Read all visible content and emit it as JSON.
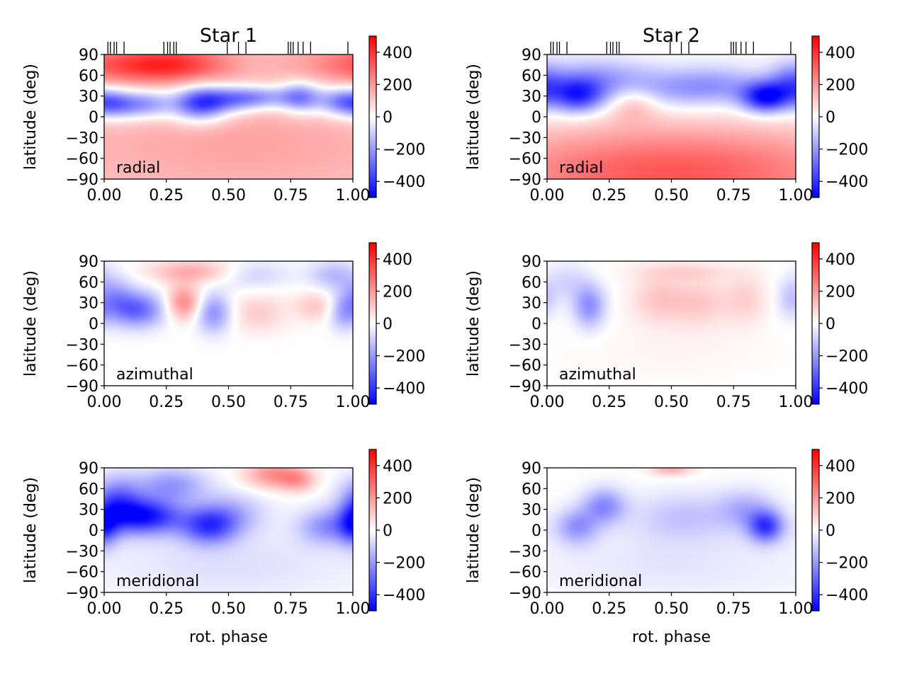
{
  "chart_data": {
    "type": "heatmap",
    "suptitle": "",
    "columns": [
      {
        "title": "Star 1",
        "observation_phases": [
          0.015,
          0.025,
          0.04,
          0.05,
          0.08,
          0.24,
          0.255,
          0.265,
          0.28,
          0.29,
          0.495,
          0.54,
          0.57,
          0.74,
          0.75,
          0.76,
          0.78,
          0.8,
          0.83,
          0.98
        ],
        "panels": [
          {
            "component": "radial",
            "baseline": 120,
            "features": [
              {
                "phase": 0.1,
                "lat": 75,
                "value": 200,
                "sp": 0.2,
                "sl": 18
              },
              {
                "phase": 0.3,
                "lat": 75,
                "value": 180,
                "sp": 0.15,
                "sl": 18
              },
              {
                "phase": 0.05,
                "lat": 18,
                "value": -320,
                "sp": 0.07,
                "sl": 15
              },
              {
                "phase": 0.18,
                "lat": 18,
                "value": -260,
                "sp": 0.07,
                "sl": 15
              },
              {
                "phase": 0.38,
                "lat": 18,
                "value": -420,
                "sp": 0.08,
                "sl": 18
              },
              {
                "phase": 0.5,
                "lat": 25,
                "value": -250,
                "sp": 0.1,
                "sl": 14
              },
              {
                "phase": 0.63,
                "lat": 28,
                "value": -240,
                "sp": 0.1,
                "sl": 12
              },
              {
                "phase": 0.79,
                "lat": 28,
                "value": -320,
                "sp": 0.06,
                "sl": 16
              },
              {
                "phase": 0.95,
                "lat": 22,
                "value": -300,
                "sp": 0.07,
                "sl": 15
              },
              {
                "phase": 0.55,
                "lat": -40,
                "value": 60,
                "sp": 0.4,
                "sl": 40
              }
            ]
          },
          {
            "component": "azimuthal",
            "baseline": 0,
            "features": [
              {
                "phase": 0.13,
                "lat": 20,
                "value": -300,
                "sp": 0.08,
                "sl": 18
              },
              {
                "phase": 0.03,
                "lat": 40,
                "value": -160,
                "sp": 0.06,
                "sl": 20
              },
              {
                "phase": 0.32,
                "lat": 30,
                "value": 240,
                "sp": 0.05,
                "sl": 18
              },
              {
                "phase": 0.35,
                "lat": 75,
                "value": 160,
                "sp": 0.12,
                "sl": 12
              },
              {
                "phase": 0.44,
                "lat": 15,
                "value": -220,
                "sp": 0.05,
                "sl": 20
              },
              {
                "phase": 0.62,
                "lat": 15,
                "value": 100,
                "sp": 0.08,
                "sl": 20
              },
              {
                "phase": 0.85,
                "lat": 25,
                "value": 110,
                "sp": 0.06,
                "sl": 15
              },
              {
                "phase": 0.92,
                "lat": 70,
                "value": -130,
                "sp": 0.07,
                "sl": 15
              },
              {
                "phase": 0.96,
                "lat": 15,
                "value": -150,
                "sp": 0.04,
                "sl": 18
              },
              {
                "phase": 0.6,
                "lat": 70,
                "value": -90,
                "sp": 0.1,
                "sl": 15
              }
            ]
          },
          {
            "component": "meridional",
            "baseline": 0,
            "features": [
              {
                "phase": 0.17,
                "lat": 20,
                "value": -440,
                "sp": 0.1,
                "sl": 18
              },
              {
                "phase": 0.05,
                "lat": 40,
                "value": -300,
                "sp": 0.07,
                "sl": 25
              },
              {
                "phase": 0.27,
                "lat": 65,
                "value": -200,
                "sp": 0.1,
                "sl": 18
              },
              {
                "phase": 0.42,
                "lat": 5,
                "value": -330,
                "sp": 0.08,
                "sl": 18
              },
              {
                "phase": 0.5,
                "lat": 25,
                "value": -150,
                "sp": 0.1,
                "sl": 20
              },
              {
                "phase": 0.68,
                "lat": 80,
                "value": 220,
                "sp": 0.08,
                "sl": 14
              },
              {
                "phase": 0.78,
                "lat": 72,
                "value": 150,
                "sp": 0.05,
                "sl": 12
              },
              {
                "phase": 0.9,
                "lat": 5,
                "value": -210,
                "sp": 0.08,
                "sl": 18
              },
              {
                "phase": 0.0,
                "lat": 5,
                "value": -250,
                "sp": 0.04,
                "sl": 20
              },
              {
                "phase": 0.5,
                "lat": -50,
                "value": -60,
                "sp": 0.4,
                "sl": 40
              }
            ]
          }
        ]
      },
      {
        "title": "Star 2",
        "observation_phases": [
          0.015,
          0.025,
          0.04,
          0.05,
          0.08,
          0.24,
          0.255,
          0.265,
          0.28,
          0.29,
          0.495,
          0.54,
          0.57,
          0.74,
          0.75,
          0.76,
          0.78,
          0.8,
          0.83,
          0.98
        ],
        "panels": [
          {
            "component": "radial",
            "baseline": 0,
            "features": [
              {
                "phase": 0.5,
                "lat": -80,
                "value": 330,
                "sp": 0.6,
                "sl": 50
              },
              {
                "phase": 0.35,
                "lat": 20,
                "value": 120,
                "sp": 0.07,
                "sl": 18
              },
              {
                "phase": 0.12,
                "lat": 30,
                "value": -400,
                "sp": 0.08,
                "sl": 18
              },
              {
                "phase": 0.2,
                "lat": 55,
                "value": -180,
                "sp": 0.15,
                "sl": 20
              },
              {
                "phase": 0.5,
                "lat": 40,
                "value": -160,
                "sp": 0.15,
                "sl": 20
              },
              {
                "phase": 0.7,
                "lat": 45,
                "value": -150,
                "sp": 0.12,
                "sl": 20
              },
              {
                "phase": 0.88,
                "lat": 28,
                "value": -480,
                "sp": 0.07,
                "sl": 16
              },
              {
                "phase": 0.98,
                "lat": 50,
                "value": -200,
                "sp": 0.06,
                "sl": 20
              }
            ]
          },
          {
            "component": "azimuthal",
            "baseline": 0,
            "features": [
              {
                "phase": 0.17,
                "lat": 25,
                "value": -220,
                "sp": 0.045,
                "sl": 22
              },
              {
                "phase": 0.08,
                "lat": 60,
                "value": -80,
                "sp": 0.06,
                "sl": 20
              },
              {
                "phase": 0.45,
                "lat": 35,
                "value": 110,
                "sp": 0.08,
                "sl": 25
              },
              {
                "phase": 0.62,
                "lat": 30,
                "value": 100,
                "sp": 0.08,
                "sl": 25
              },
              {
                "phase": 0.8,
                "lat": 35,
                "value": 90,
                "sp": 0.06,
                "sl": 25
              },
              {
                "phase": 0.55,
                "lat": 75,
                "value": 70,
                "sp": 0.15,
                "sl": 10
              },
              {
                "phase": 0.98,
                "lat": 35,
                "value": -110,
                "sp": 0.04,
                "sl": 20
              },
              {
                "phase": 0.5,
                "lat": -40,
                "value": 20,
                "sp": 0.3,
                "sl": 30
              }
            ]
          },
          {
            "component": "meridional",
            "baseline": 0,
            "features": [
              {
                "phase": 0.12,
                "lat": 5,
                "value": -200,
                "sp": 0.06,
                "sl": 18
              },
              {
                "phase": 0.23,
                "lat": 35,
                "value": -220,
                "sp": 0.06,
                "sl": 18
              },
              {
                "phase": 0.5,
                "lat": 90,
                "value": 170,
                "sp": 0.06,
                "sl": 8
              },
              {
                "phase": 0.55,
                "lat": 20,
                "value": -110,
                "sp": 0.15,
                "sl": 25
              },
              {
                "phase": 0.88,
                "lat": 5,
                "value": -360,
                "sp": 0.05,
                "sl": 16
              },
              {
                "phase": 0.8,
                "lat": 30,
                "value": -140,
                "sp": 0.08,
                "sl": 20
              },
              {
                "phase": 0.5,
                "lat": -50,
                "value": -50,
                "sp": 0.4,
                "sl": 40
              }
            ]
          }
        ]
      }
    ],
    "x_axis": {
      "label": "rot. phase",
      "range": [
        0.0,
        1.0
      ],
      "ticks": [
        "0.00",
        "0.25",
        "0.50",
        "0.75",
        "1.00"
      ]
    },
    "y_axis": {
      "label": "latitude (deg)",
      "range": [
        -90,
        90
      ],
      "ticks": [
        "90",
        "60",
        "30",
        "0",
        "−30",
        "−60",
        "−90"
      ]
    },
    "colorbar": {
      "range": [
        -500,
        500
      ],
      "ticks": [
        "400",
        "200",
        "0",
        "−200",
        "−400"
      ],
      "cmap": "bwr"
    },
    "colors": {
      "negative": "#0000ff",
      "zero": "#ffffff",
      "positive": "#ff0000"
    }
  }
}
